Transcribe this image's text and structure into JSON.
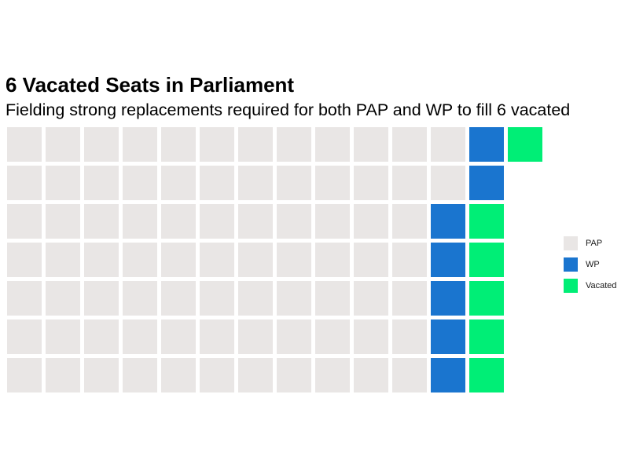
{
  "chart_data": {
    "type": "waffle",
    "title": "6 Vacated Seats in Parliament",
    "subtitle": "Fielding strong replacements required for both PAP and WP to fill 6 vacated",
    "rows": 7,
    "columns": 14,
    "series": [
      {
        "name": "PAP",
        "value": 79,
        "color": "#E9E6E5"
      },
      {
        "name": "WP",
        "value": 7,
        "color": "#1A75CF"
      },
      {
        "name": "Vacated",
        "value": 6,
        "color": "#00EE76"
      }
    ],
    "fill_order": "column-wise, top to bottom",
    "legend_position": "right"
  }
}
